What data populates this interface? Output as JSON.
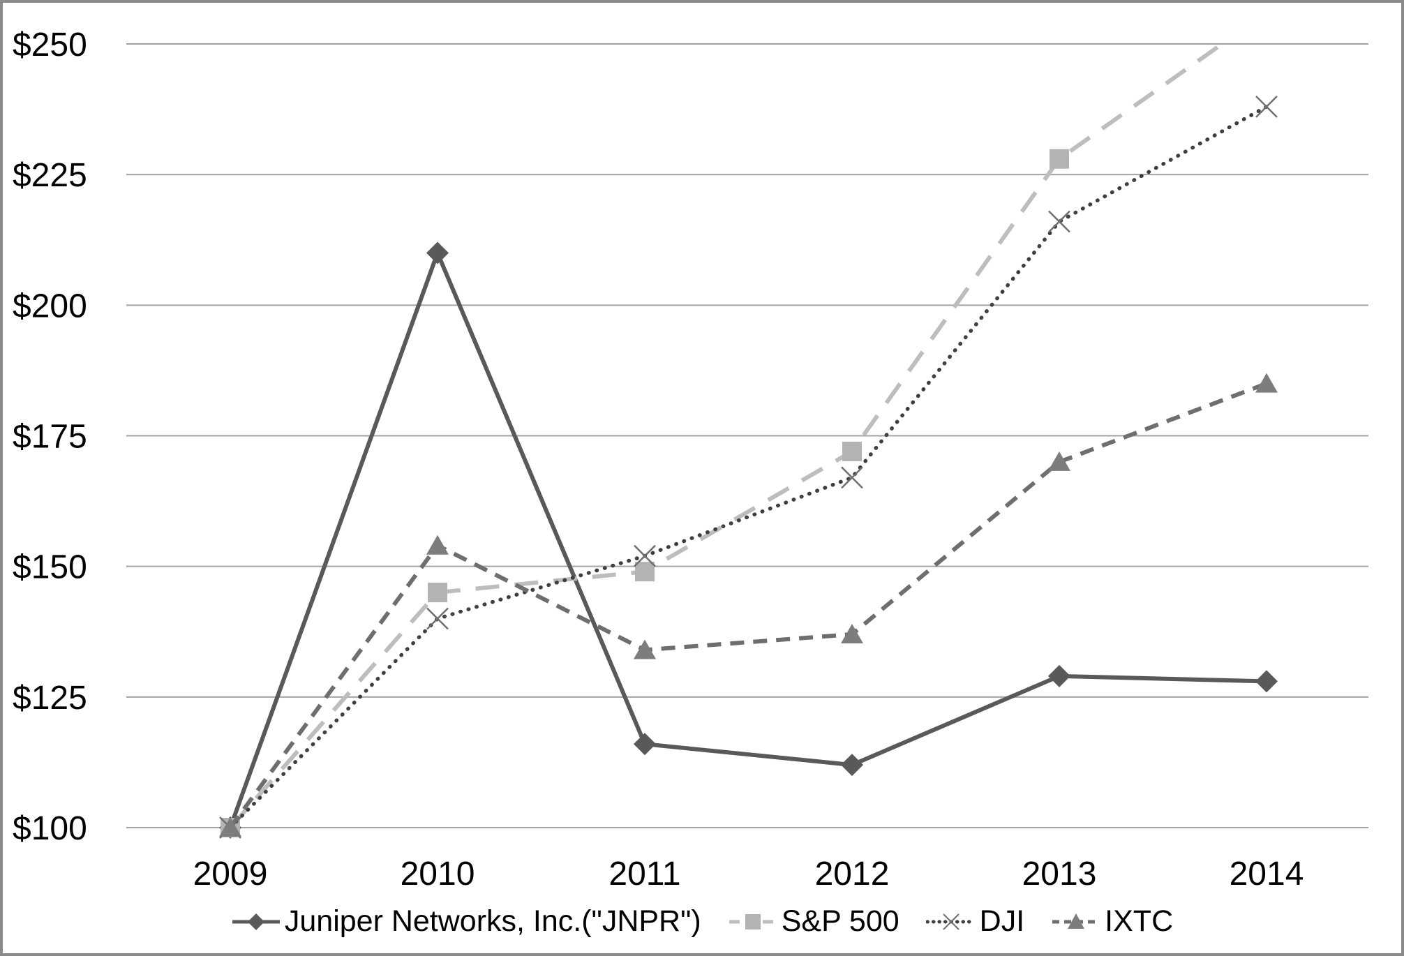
{
  "chart_data": {
    "type": "line",
    "title": "",
    "xlabel": "",
    "ylabel": "",
    "categories": [
      "2009",
      "2010",
      "2011",
      "2012",
      "2013",
      "2014"
    ],
    "y_ticks": [
      100,
      125,
      150,
      175,
      200,
      225,
      250
    ],
    "y_tick_labels": [
      "$100",
      "$125",
      "$150",
      "$175",
      "$200",
      "$225",
      "$250"
    ],
    "ylim": [
      100,
      250
    ],
    "grid": "horizontal",
    "legend_position": "bottom",
    "series": [
      {
        "key": "jnpr",
        "name": "Juniper Networks, Inc.(\"JNPR\")",
        "values": [
          100,
          210,
          116,
          112,
          129,
          128
        ],
        "color": "#595959",
        "marker_color": "#595959",
        "line_style": "solid",
        "marker": "diamond"
      },
      {
        "key": "sp500",
        "name": "S&P 500",
        "values": [
          100,
          145,
          149,
          172,
          228,
          256
        ],
        "color": "#bdbdbd",
        "marker_color": "#b3b3b3",
        "line_style": "long-dash",
        "marker": "square"
      },
      {
        "key": "dji",
        "name": "DJI",
        "values": [
          100,
          140,
          152,
          167,
          216,
          238
        ],
        "color": "#3f3f3f",
        "marker_color": "#6f6f6f",
        "line_style": "dotted",
        "marker": "x"
      },
      {
        "key": "ixtc",
        "name": "IXTC",
        "values": [
          100,
          154,
          134,
          137,
          170,
          185
        ],
        "color": "#6e6e6e",
        "marker_color": "#7d7d7d",
        "line_style": "dash",
        "marker": "triangle"
      }
    ]
  },
  "colors": {
    "background": "#ffffff",
    "gridline": "#a3a3a3",
    "frame_border": "#8a8a8a",
    "text": "#000000"
  }
}
